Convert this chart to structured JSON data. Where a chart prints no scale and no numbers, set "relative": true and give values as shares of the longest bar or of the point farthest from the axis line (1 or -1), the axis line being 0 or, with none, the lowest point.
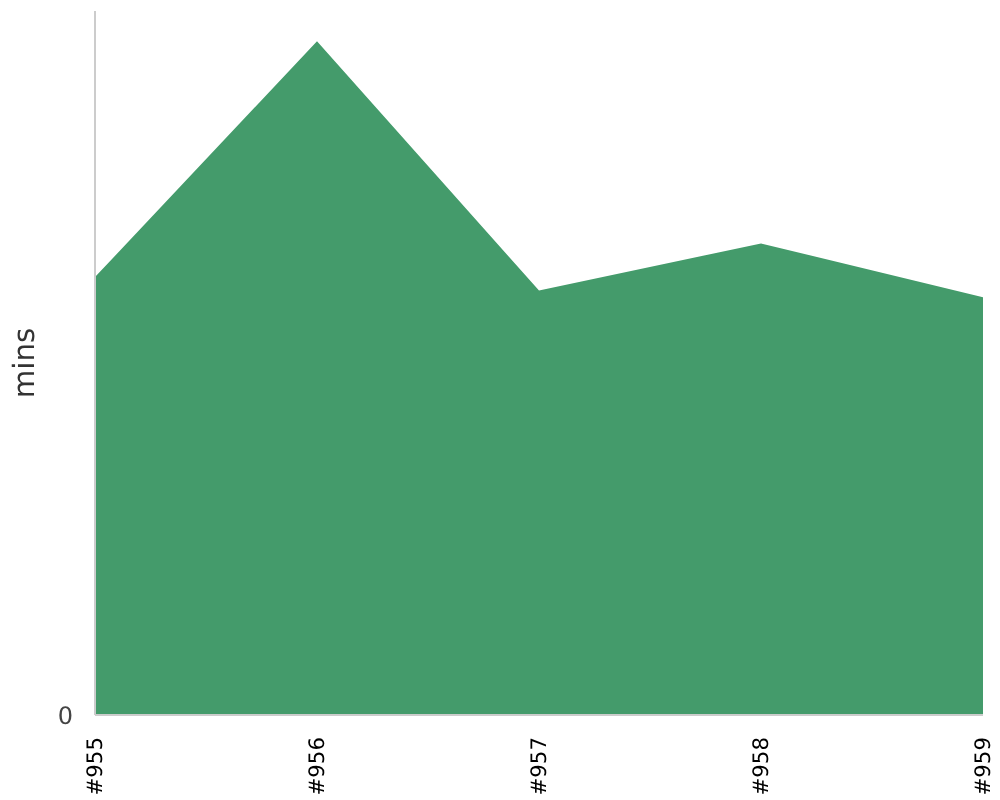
{
  "chart_data": {
    "type": "area",
    "relative": true,
    "ylabel": "mins",
    "categories": [
      "#955",
      "#956",
      "#957",
      "#958",
      "#959"
    ],
    "series": [
      {
        "color": "#449b6b",
        "values": [
          0.65,
          1.0,
          0.63,
          0.7,
          0.62
        ]
      }
    ],
    "annotations": [
      "0"
    ],
    "grid": false
  }
}
